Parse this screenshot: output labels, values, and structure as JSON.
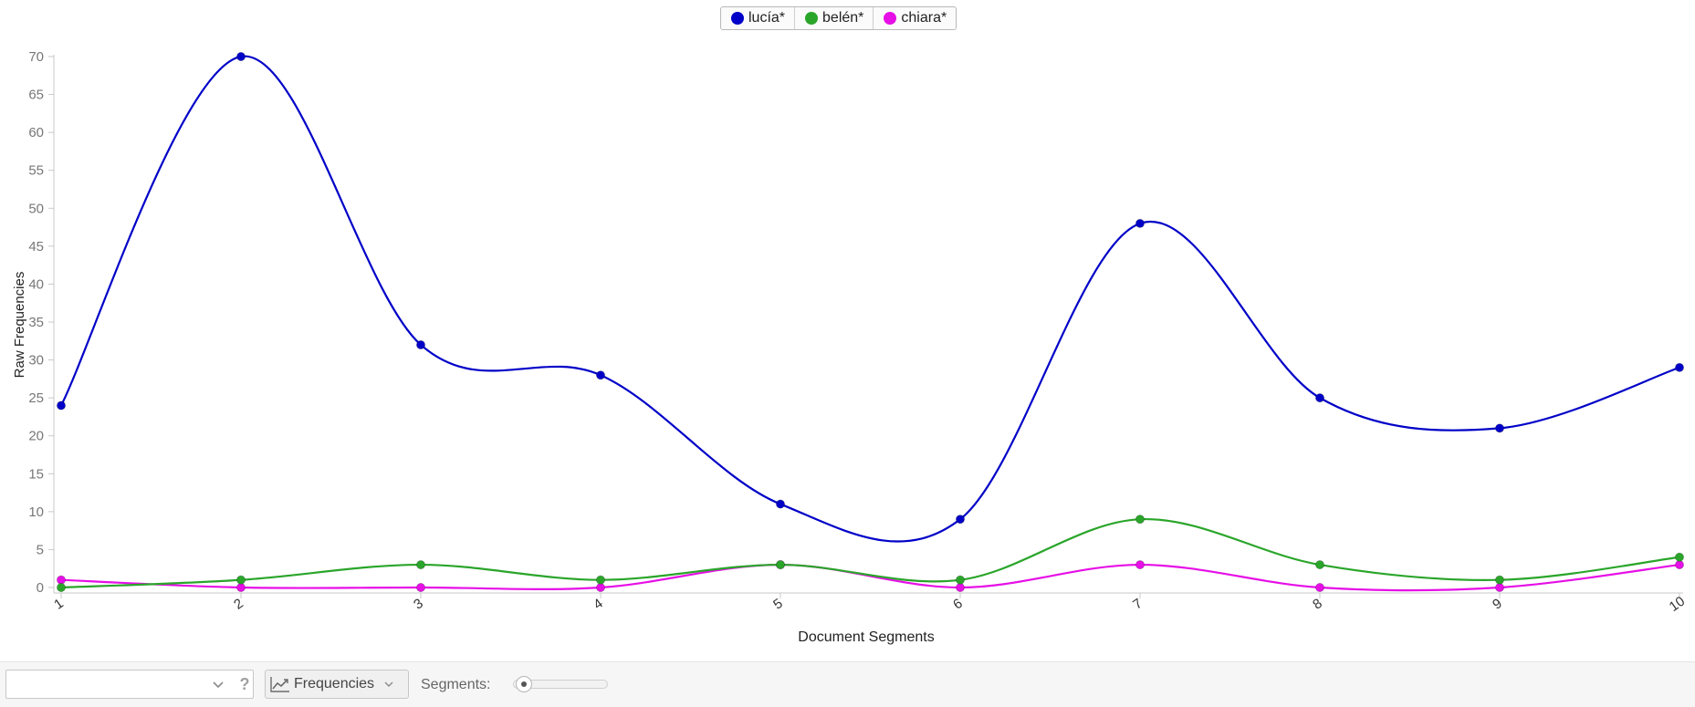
{
  "chart_data": {
    "type": "line",
    "title": "",
    "xlabel": "Document Segments",
    "ylabel": "Raw Frequencies",
    "categories": [
      "1",
      "2",
      "3",
      "4",
      "5",
      "6",
      "7",
      "8",
      "9",
      "10"
    ],
    "ylim": [
      0,
      70
    ],
    "yticks": [
      0,
      5,
      10,
      15,
      20,
      25,
      30,
      35,
      40,
      45,
      50,
      55,
      60,
      65,
      70
    ],
    "grid": false,
    "legend_position": "top-center",
    "smooth": true,
    "series": [
      {
        "name": "lucía*",
        "color": "#0000c8",
        "values": [
          24,
          70,
          32,
          28,
          11,
          9,
          48,
          25,
          21,
          29
        ]
      },
      {
        "name": "belén*",
        "color": "#2aa52a",
        "values": [
          0,
          1,
          3,
          1,
          3,
          1,
          9,
          3,
          1,
          4
        ]
      },
      {
        "name": "chiara*",
        "color": "#e60fe6",
        "values": [
          1,
          0,
          0,
          0,
          3,
          0,
          3,
          0,
          0,
          3
        ]
      }
    ]
  },
  "toolbar": {
    "term_value": "",
    "chevron_icon": "chevron-down-icon",
    "help_glyph": "?",
    "mode_icon": "line-chart-icon",
    "mode_label": "Frequencies",
    "segments_label": "Segments:",
    "segments_fraction": 0.0
  }
}
